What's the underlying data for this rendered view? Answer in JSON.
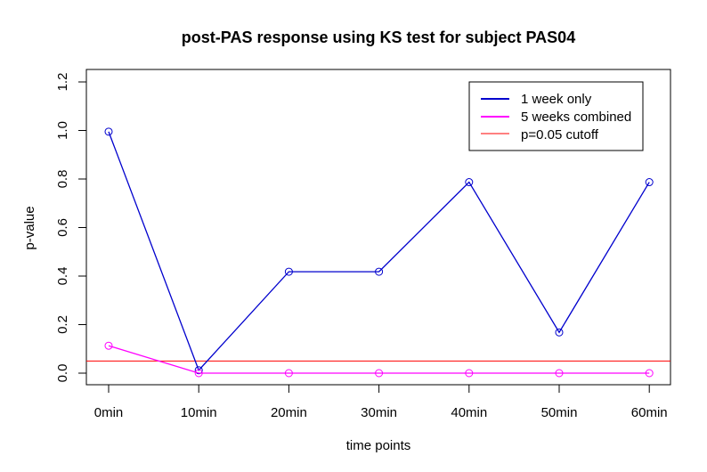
{
  "chart_data": {
    "type": "line",
    "title": "post-PAS response using KS test for subject PAS04",
    "xlabel": "time points",
    "ylabel": "p-value",
    "categories": [
      "0min",
      "10min",
      "20min",
      "30min",
      "40min",
      "50min",
      "60min"
    ],
    "yticks": [
      "0.0",
      "0.2",
      "0.4",
      "0.6",
      "0.8",
      "1.0",
      "1.2"
    ],
    "ylim": [
      0,
      1.2
    ],
    "grid": false,
    "legend_position": "top-right",
    "series": [
      {
        "name": "1 week only",
        "color": "#0000CD",
        "marker": "open-circle",
        "values": [
          0.995,
          0.012,
          0.418,
          0.418,
          0.787,
          0.168,
          0.787
        ]
      },
      {
        "name": "5 weeks combined",
        "color": "#FF00FF",
        "marker": "open-circle",
        "values": [
          0.113,
          0.0,
          0.0,
          0.0,
          0.0,
          0.0,
          0.0
        ]
      }
    ],
    "reference_lines": [
      {
        "name": "p=0.05 cutoff",
        "color": "#FF0000",
        "y": 0.05
      }
    ]
  }
}
